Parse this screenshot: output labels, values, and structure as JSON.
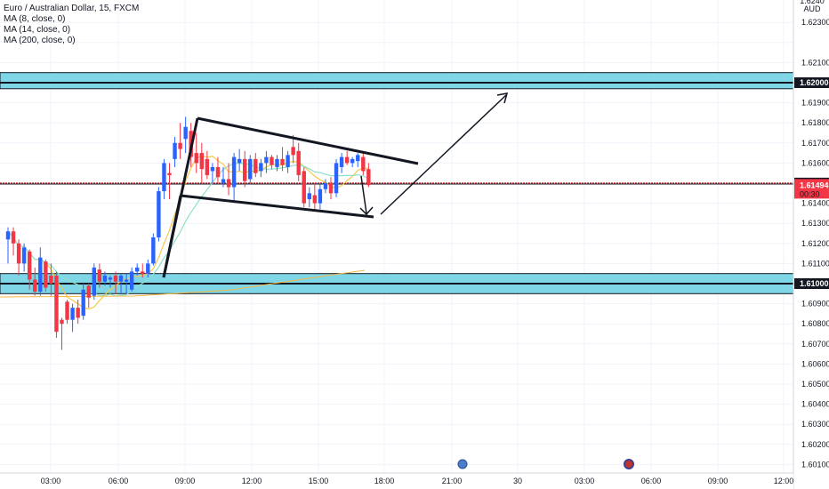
{
  "legend": {
    "symbol_line": "Euro / Australian Dollar, 15, FXCM",
    "ma1": "MA (8, close, 0)",
    "ma2": "MA (14, close, 0)",
    "ma3": "MA (200, close, 0)"
  },
  "price_axis": {
    "currency_top": "1.6240",
    "currency": "AUD",
    "ticks": [
      "1.62300",
      "1.62100",
      "1.62000",
      "1.61900",
      "1.61800",
      "1.61700",
      "1.61600",
      "1.61500",
      "1.61400",
      "1.61300",
      "1.61200",
      "1.61100",
      "1.61000",
      "1.60900",
      "1.60800",
      "1.60700",
      "1.60600",
      "1.60500",
      "1.60400",
      "1.60300",
      "1.60200",
      "1.60100"
    ],
    "tag_upper": "1.62000",
    "tag_current": "1.61500",
    "tag_last": "1.61494",
    "tag_countdown": "00:30",
    "tag_lower": "1.61000"
  },
  "time_axis": {
    "ticks": [
      "03:00",
      "06:00",
      "09:00",
      "12:00",
      "15:00",
      "18:00",
      "21:00",
      "30",
      "03:00",
      "06:00",
      "09:00",
      "12:00"
    ]
  },
  "colors": {
    "up": "#2962ff",
    "down": "#f23645",
    "zone_fill": "#7fd6e6",
    "ma8": "#f7c948",
    "ma14": "#8fe0c9",
    "ma200": "#f5b942",
    "dashed_line": "#d32f2f",
    "grid": "#f0f3fa"
  },
  "chart_data": {
    "type": "candlestick",
    "title": "Euro / Australian Dollar, 15, FXCM",
    "ylim": [
      1.6007,
      1.6242
    ],
    "candles": [
      {
        "o": 1.6122,
        "h": 1.6128,
        "l": 1.611,
        "c": 1.6126
      },
      {
        "o": 1.6126,
        "h": 1.6128,
        "l": 1.6114,
        "c": 1.612
      },
      {
        "o": 1.612,
        "h": 1.6122,
        "l": 1.6104,
        "c": 1.611
      },
      {
        "o": 1.611,
        "h": 1.612,
        "l": 1.6106,
        "c": 1.6118
      },
      {
        "o": 1.6116,
        "h": 1.6117,
        "l": 1.6097,
        "c": 1.6102
      },
      {
        "o": 1.6102,
        "h": 1.6108,
        "l": 1.6094,
        "c": 1.6096
      },
      {
        "o": 1.6096,
        "h": 1.6118,
        "l": 1.6094,
        "c": 1.6113
      },
      {
        "o": 1.6111,
        "h": 1.6112,
        "l": 1.6096,
        "c": 1.6098
      },
      {
        "o": 1.6104,
        "h": 1.611,
        "l": 1.6094,
        "c": 1.61
      },
      {
        "o": 1.6104,
        "h": 1.6106,
        "l": 1.6073,
        "c": 1.6076
      },
      {
        "o": 1.6082,
        "h": 1.6083,
        "l": 1.6067,
        "c": 1.608
      },
      {
        "o": 1.6091,
        "h": 1.6092,
        "l": 1.608,
        "c": 1.6082
      },
      {
        "o": 1.6082,
        "h": 1.609,
        "l": 1.6076,
        "c": 1.6088
      },
      {
        "o": 1.6088,
        "h": 1.6092,
        "l": 1.608,
        "c": 1.6083
      },
      {
        "o": 1.6084,
        "h": 1.61,
        "l": 1.6082,
        "c": 1.6097
      },
      {
        "o": 1.6099,
        "h": 1.61,
        "l": 1.6088,
        "c": 1.6093
      },
      {
        "o": 1.6094,
        "h": 1.611,
        "l": 1.6092,
        "c": 1.6108
      },
      {
        "o": 1.6107,
        "h": 1.611,
        "l": 1.6098,
        "c": 1.6101
      },
      {
        "o": 1.6101,
        "h": 1.6106,
        "l": 1.6099,
        "c": 1.6104
      },
      {
        "o": 1.6102,
        "h": 1.6104,
        "l": 1.6098,
        "c": 1.6103
      },
      {
        "o": 1.6104,
        "h": 1.6106,
        "l": 1.6095,
        "c": 1.6101
      },
      {
        "o": 1.6101,
        "h": 1.6105,
        "l": 1.6095,
        "c": 1.6104
      },
      {
        "o": 1.6101,
        "h": 1.6105,
        "l": 1.6095,
        "c": 1.6102
      },
      {
        "o": 1.6097,
        "h": 1.6108,
        "l": 1.6096,
        "c": 1.6106
      },
      {
        "o": 1.6106,
        "h": 1.611,
        "l": 1.6104,
        "c": 1.6108
      },
      {
        "o": 1.6106,
        "h": 1.611,
        "l": 1.6103,
        "c": 1.6105
      },
      {
        "o": 1.6105,
        "h": 1.6112,
        "l": 1.6103,
        "c": 1.611
      },
      {
        "o": 1.611,
        "h": 1.6125,
        "l": 1.6109,
        "c": 1.6123
      },
      {
        "o": 1.6123,
        "h": 1.6148,
        "l": 1.6121,
        "c": 1.6146
      },
      {
        "o": 1.6146,
        "h": 1.6162,
        "l": 1.6142,
        "c": 1.616
      },
      {
        "o": 1.6155,
        "h": 1.616,
        "l": 1.6142,
        "c": 1.6154
      },
      {
        "o": 1.6162,
        "h": 1.6173,
        "l": 1.6158,
        "c": 1.617
      },
      {
        "o": 1.617,
        "h": 1.618,
        "l": 1.6162,
        "c": 1.6167
      },
      {
        "o": 1.6172,
        "h": 1.6183,
        "l": 1.6165,
        "c": 1.6178
      },
      {
        "o": 1.6176,
        "h": 1.618,
        "l": 1.6158,
        "c": 1.6163
      },
      {
        "o": 1.6165,
        "h": 1.6175,
        "l": 1.6155,
        "c": 1.616
      },
      {
        "o": 1.6165,
        "h": 1.617,
        "l": 1.615,
        "c": 1.6157
      },
      {
        "o": 1.6162,
        "h": 1.6166,
        "l": 1.6152,
        "c": 1.6154
      },
      {
        "o": 1.6156,
        "h": 1.616,
        "l": 1.615,
        "c": 1.6158
      },
      {
        "o": 1.6158,
        "h": 1.6163,
        "l": 1.615,
        "c": 1.6153
      },
      {
        "o": 1.615,
        "h": 1.6158,
        "l": 1.6148,
        "c": 1.6152
      },
      {
        "o": 1.6152,
        "h": 1.616,
        "l": 1.6144,
        "c": 1.6148
      },
      {
        "o": 1.6148,
        "h": 1.6165,
        "l": 1.6141,
        "c": 1.6163
      },
      {
        "o": 1.616,
        "h": 1.6167,
        "l": 1.6156,
        "c": 1.6162
      },
      {
        "o": 1.6162,
        "h": 1.6166,
        "l": 1.6148,
        "c": 1.6151
      },
      {
        "o": 1.6152,
        "h": 1.6164,
        "l": 1.615,
        "c": 1.6162
      },
      {
        "o": 1.6162,
        "h": 1.6165,
        "l": 1.6153,
        "c": 1.6155
      },
      {
        "o": 1.6156,
        "h": 1.6162,
        "l": 1.6153,
        "c": 1.616
      },
      {
        "o": 1.616,
        "h": 1.6166,
        "l": 1.6155,
        "c": 1.6163
      },
      {
        "o": 1.6163,
        "h": 1.6164,
        "l": 1.6157,
        "c": 1.6159
      },
      {
        "o": 1.6158,
        "h": 1.6164,
        "l": 1.6156,
        "c": 1.6162
      },
      {
        "o": 1.6162,
        "h": 1.6168,
        "l": 1.6156,
        "c": 1.6159
      },
      {
        "o": 1.6158,
        "h": 1.6166,
        "l": 1.6155,
        "c": 1.6164
      },
      {
        "o": 1.6168,
        "h": 1.6174,
        "l": 1.616,
        "c": 1.6164
      },
      {
        "o": 1.6166,
        "h": 1.617,
        "l": 1.6151,
        "c": 1.6154
      },
      {
        "o": 1.6156,
        "h": 1.6158,
        "l": 1.6138,
        "c": 1.614
      },
      {
        "o": 1.6142,
        "h": 1.6148,
        "l": 1.6138,
        "c": 1.6145
      },
      {
        "o": 1.6144,
        "h": 1.615,
        "l": 1.6136,
        "c": 1.614
      },
      {
        "o": 1.614,
        "h": 1.615,
        "l": 1.6137,
        "c": 1.6147
      },
      {
        "o": 1.6147,
        "h": 1.6152,
        "l": 1.6145,
        "c": 1.615
      },
      {
        "o": 1.615,
        "h": 1.6153,
        "l": 1.6142,
        "c": 1.6145
      },
      {
        "o": 1.6145,
        "h": 1.6162,
        "l": 1.6143,
        "c": 1.616
      },
      {
        "o": 1.6158,
        "h": 1.6165,
        "l": 1.6155,
        "c": 1.6163
      },
      {
        "o": 1.6163,
        "h": 1.6166,
        "l": 1.6159,
        "c": 1.616
      },
      {
        "o": 1.616,
        "h": 1.6163,
        "l": 1.6158,
        "c": 1.6162
      },
      {
        "o": 1.6161,
        "h": 1.6165,
        "l": 1.6158,
        "c": 1.6164
      },
      {
        "o": 1.6163,
        "h": 1.6165,
        "l": 1.6154,
        "c": 1.6156
      },
      {
        "o": 1.6157,
        "h": 1.616,
        "l": 1.6148,
        "c": 1.6149
      }
    ],
    "horizontal_levels": [
      1.62,
      1.615,
      1.61
    ],
    "zones": [
      [
        1.6197,
        1.6205
      ],
      [
        1.6095,
        1.6105
      ]
    ]
  }
}
